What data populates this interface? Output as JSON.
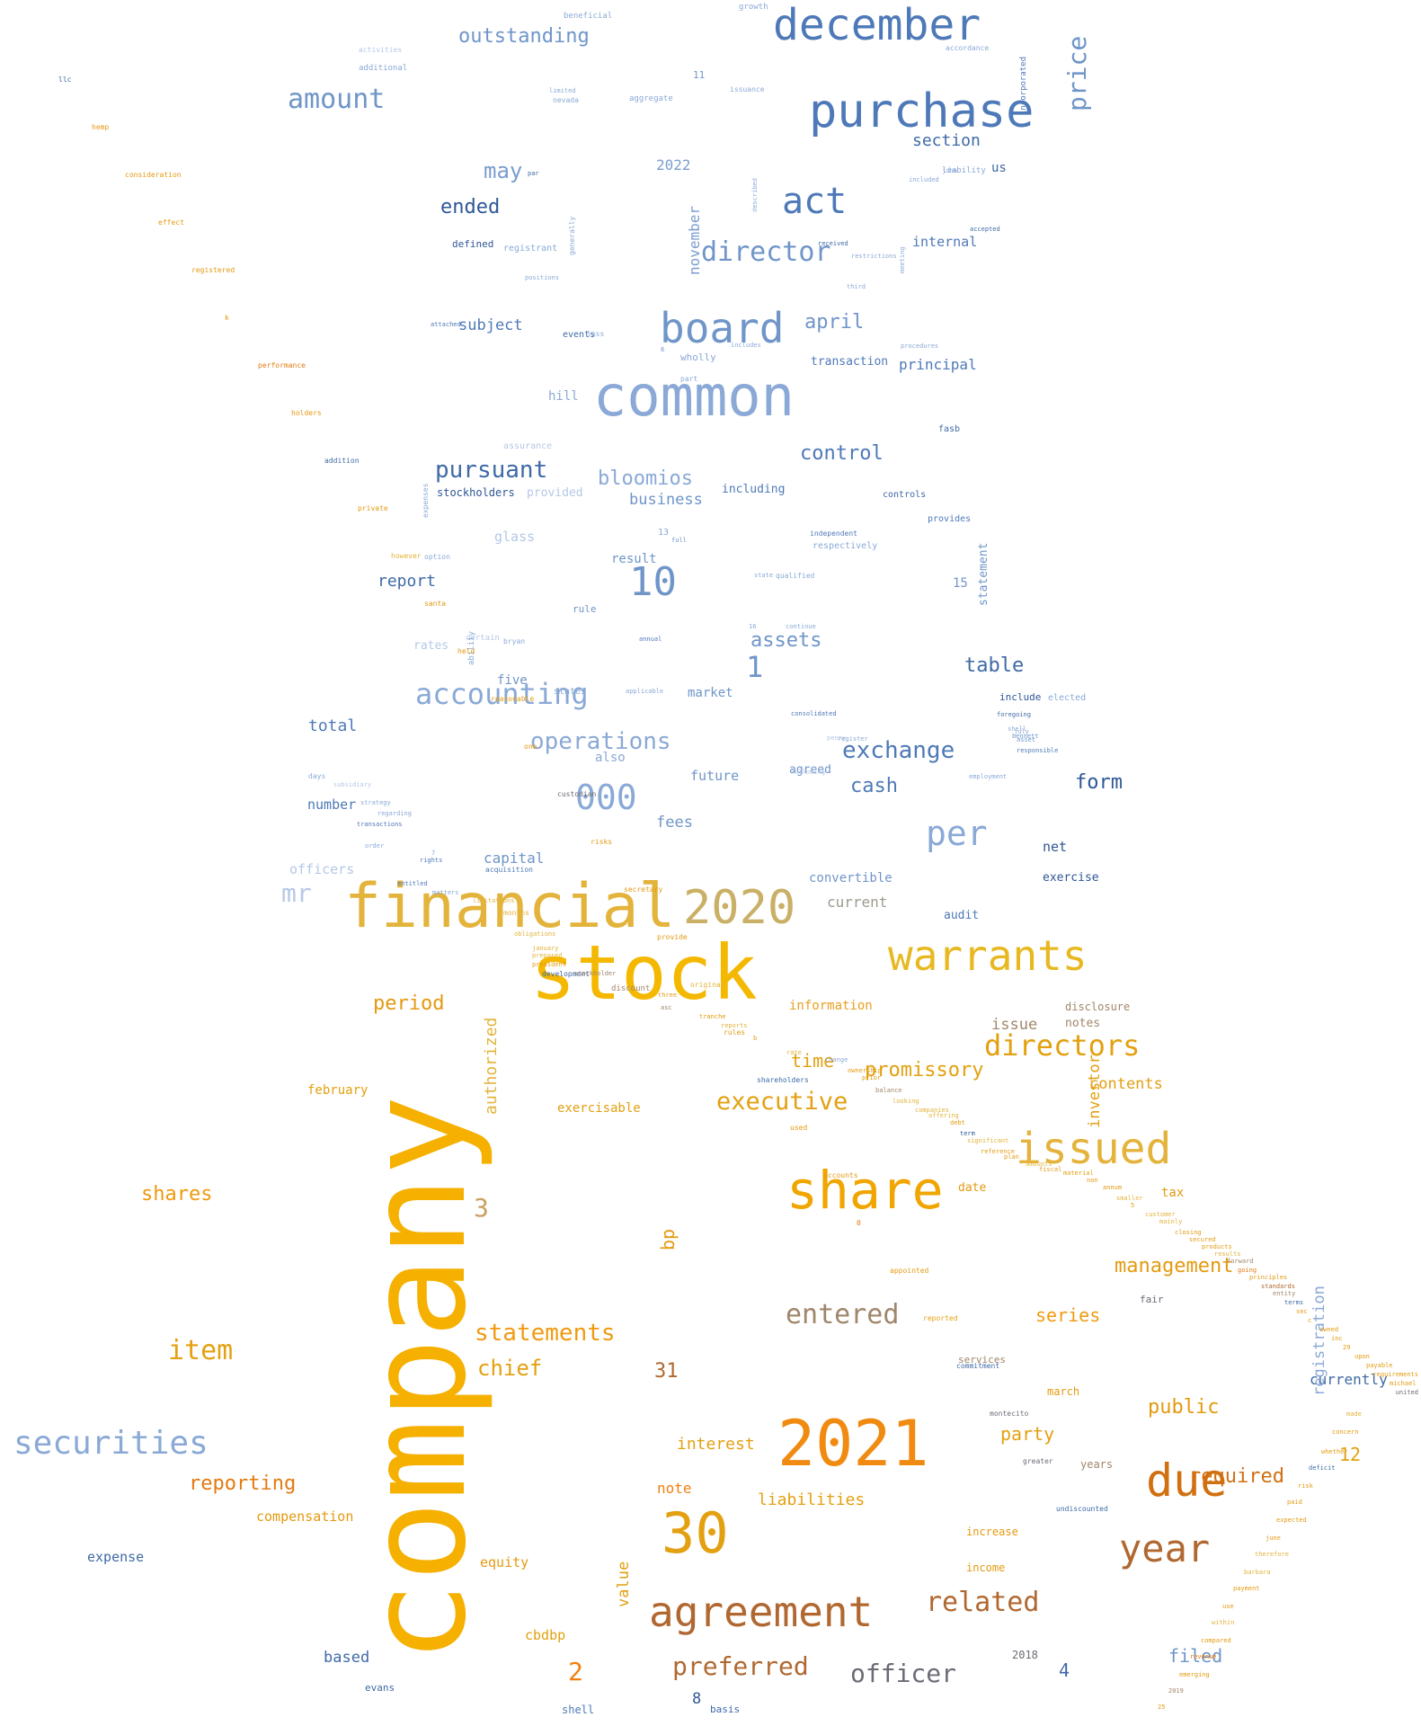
{
  "words": [
    {
      "t": "december",
      "c": "#4e79b8"
    },
    {
      "t": "purchase",
      "c": "#4e79b8"
    },
    {
      "t": "outstanding",
      "c": "#6f95c9"
    },
    {
      "t": "price",
      "c": "#6f95c9"
    },
    {
      "t": "amount",
      "c": "#6f95c9"
    },
    {
      "t": "section",
      "c": "#3f6aa6"
    },
    {
      "t": "may",
      "c": "#7a9dcf"
    },
    {
      "t": "2022",
      "c": "#7a9dcf"
    },
    {
      "t": "act",
      "c": "#4e79b8"
    },
    {
      "t": "us",
      "c": "#3f6aa6"
    },
    {
      "t": "ended",
      "c": "#2f5797"
    },
    {
      "t": "november",
      "c": "#7a9dcf"
    },
    {
      "t": "director",
      "c": "#6f95c9"
    },
    {
      "t": "internal",
      "c": "#4e79b8"
    },
    {
      "t": "defined",
      "c": "#2f5797"
    },
    {
      "t": "registrant",
      "c": "#8aa9d6"
    },
    {
      "t": "board",
      "c": "#6f95c9"
    },
    {
      "t": "april",
      "c": "#6f95c9"
    },
    {
      "t": "subject",
      "c": "#4e79b8"
    },
    {
      "t": "transaction",
      "c": "#4e79b8"
    },
    {
      "t": "principal",
      "c": "#4e79b8"
    },
    {
      "t": "common",
      "c": "#8aa9d6"
    },
    {
      "t": "hill",
      "c": "#8aa9d6"
    },
    {
      "t": "control",
      "c": "#4e79b8"
    },
    {
      "t": "pursuant",
      "c": "#3f6aa6"
    },
    {
      "t": "bloomios",
      "c": "#8aa9d6"
    },
    {
      "t": "including",
      "c": "#4e79b8"
    },
    {
      "t": "business",
      "c": "#6f95c9"
    },
    {
      "t": "stockholders",
      "c": "#2f5797"
    },
    {
      "t": "provided",
      "c": "#b5c8e6"
    },
    {
      "t": "glass",
      "c": "#b5c8e6"
    },
    {
      "t": "10",
      "c": "#6f95c9"
    },
    {
      "t": "result",
      "c": "#6f95c9"
    },
    {
      "t": "report",
      "c": "#3f6aa6"
    },
    {
      "t": "statement",
      "c": "#6f95c9"
    },
    {
      "t": "15",
      "c": "#6f95c9"
    },
    {
      "t": "rule",
      "c": "#6f95c9"
    },
    {
      "t": "assets",
      "c": "#6f95c9"
    },
    {
      "t": "rates",
      "c": "#b5c8e6"
    },
    {
      "t": "1",
      "c": "#6f95c9"
    },
    {
      "t": "table",
      "c": "#3f6aa6"
    },
    {
      "t": "accounting",
      "c": "#8aa9d6"
    },
    {
      "t": "five",
      "c": "#6f95c9"
    },
    {
      "t": "market",
      "c": "#6f95c9"
    },
    {
      "t": "include",
      "c": "#2f5797"
    },
    {
      "t": "total",
      "c": "#4e79b8"
    },
    {
      "t": "operations",
      "c": "#8aa9d6"
    },
    {
      "t": "also",
      "c": "#8aa9d6"
    },
    {
      "t": "exchange",
      "c": "#4e79b8"
    },
    {
      "t": "form",
      "c": "#2f5797"
    },
    {
      "t": "000",
      "c": "#8aa9d6"
    },
    {
      "t": "future",
      "c": "#6f95c9"
    },
    {
      "t": "cash",
      "c": "#4e79b8"
    },
    {
      "t": "agreed",
      "c": "#6f95c9"
    },
    {
      "t": "number",
      "c": "#4e79b8"
    },
    {
      "t": "fees",
      "c": "#6f95c9"
    },
    {
      "t": "per",
      "c": "#8aa9d6"
    },
    {
      "t": "net",
      "c": "#2f5797"
    },
    {
      "t": "officers",
      "c": "#b5c8e6"
    },
    {
      "t": "capital",
      "c": "#6f95c9"
    },
    {
      "t": "exercise",
      "c": "#2f5797"
    },
    {
      "t": "mr",
      "c": "#b5c8e6"
    },
    {
      "t": "convertible",
      "c": "#6f95c9"
    },
    {
      "t": "current",
      "c": "#9e9a8e"
    },
    {
      "t": "audit",
      "c": "#4e79b8"
    },
    {
      "t": "financial",
      "c": "#e3b33b"
    },
    {
      "t": "2020",
      "c": "#c9b066"
    },
    {
      "t": "stock",
      "c": "#f5b800"
    },
    {
      "t": "warrants",
      "c": "#e8b820"
    },
    {
      "t": "information",
      "c": "#e8a020"
    },
    {
      "t": "period",
      "c": "#e39a10"
    },
    {
      "t": "disclosure",
      "c": "#a0866a"
    },
    {
      "t": "issue",
      "c": "#a0866a"
    },
    {
      "t": "notes",
      "c": "#a0866a"
    },
    {
      "t": "directors",
      "c": "#e3a010"
    },
    {
      "t": "time",
      "c": "#e3a010"
    },
    {
      "t": "promissory",
      "c": "#e3a010"
    },
    {
      "t": "contents",
      "c": "#e3a010"
    },
    {
      "t": "authorized",
      "c": "#e3b33b"
    },
    {
      "t": "february",
      "c": "#e3a010"
    },
    {
      "t": "executive",
      "c": "#e3a010"
    },
    {
      "t": "investor",
      "c": "#e3a010"
    },
    {
      "t": "exercisable",
      "c": "#e3a010"
    },
    {
      "t": "issued",
      "c": "#e3b33b"
    },
    {
      "t": "company",
      "c": "#f5b000"
    },
    {
      "t": "share",
      "c": "#f0a500"
    },
    {
      "t": "shares",
      "c": "#f09a10"
    },
    {
      "t": "3",
      "c": "#c9a060"
    },
    {
      "t": "date",
      "c": "#e39a10"
    },
    {
      "t": "tax",
      "c": "#e39a10"
    },
    {
      "t": "bp",
      "c": "#e39a10"
    },
    {
      "t": "management",
      "c": "#e39a10"
    },
    {
      "t": "entered",
      "c": "#a0866a"
    },
    {
      "t": "statements",
      "c": "#f09a10"
    },
    {
      "t": "series",
      "c": "#f09a10"
    },
    {
      "t": "item",
      "c": "#e3a010"
    },
    {
      "t": "chief",
      "c": "#e3a010"
    },
    {
      "t": "31",
      "c": "#b06830"
    },
    {
      "t": "public",
      "c": "#e39a10"
    },
    {
      "t": "currently",
      "c": "#3f6aa6"
    },
    {
      "t": "securities",
      "c": "#8aa9d6"
    },
    {
      "t": "2021",
      "c": "#f08a10"
    },
    {
      "t": "party",
      "c": "#e3a010"
    },
    {
      "t": "interest",
      "c": "#e3a010"
    },
    {
      "t": "due",
      "c": "#d07010"
    },
    {
      "t": "12",
      "c": "#e3a010"
    },
    {
      "t": "required",
      "c": "#d07010"
    },
    {
      "t": "registration",
      "c": "#8aa9d6"
    },
    {
      "t": "reporting",
      "c": "#e37a10"
    },
    {
      "t": "note",
      "c": "#f08010"
    },
    {
      "t": "liabilities",
      "c": "#e3a010"
    },
    {
      "t": "30",
      "c": "#e3a010"
    },
    {
      "t": "year",
      "c": "#b06830"
    },
    {
      "t": "compensation",
      "c": "#e39a10"
    },
    {
      "t": "expense",
      "c": "#3f6aa6"
    },
    {
      "t": "agreement",
      "c": "#b06830"
    },
    {
      "t": "related",
      "c": "#b06830"
    },
    {
      "t": "value",
      "c": "#e3a010"
    },
    {
      "t": "equity",
      "c": "#e39a10"
    },
    {
      "t": "cbdbp",
      "c": "#e3a010"
    },
    {
      "t": "based",
      "c": "#3f6aa6"
    },
    {
      "t": "2",
      "c": "#f08010"
    },
    {
      "t": "preferred",
      "c": "#b06830"
    },
    {
      "t": "officer",
      "c": "#6d6a75"
    },
    {
      "t": "filed",
      "c": "#6f95c9"
    },
    {
      "t": "4",
      "c": "#3f6aa6"
    },
    {
      "t": "8",
      "c": "#2f5797"
    },
    {
      "t": "shell",
      "c": "#4e79b8"
    },
    {
      "t": "basis",
      "c": "#3f6aa6"
    },
    {
      "t": "evans",
      "c": "#3f6aa6"
    },
    {
      "t": "2018",
      "c": "#6d6a75"
    },
    {
      "t": "fair",
      "c": "#6d6a75"
    },
    {
      "t": "services",
      "c": "#a0866a"
    },
    {
      "t": "march",
      "c": "#e39a10"
    },
    {
      "t": "years",
      "c": "#a0866a"
    },
    {
      "t": "increase",
      "c": "#e39a10"
    },
    {
      "t": "income",
      "c": "#e39a10"
    },
    {
      "t": "beneficial",
      "c": "#8aa9d6"
    },
    {
      "t": "growth",
      "c": "#8aa9d6"
    },
    {
      "t": "activities",
      "c": "#b5c8e6"
    },
    {
      "t": "additional",
      "c": "#8aa9d6"
    },
    {
      "t": "nevada",
      "c": "#8aa9d6"
    },
    {
      "t": "aggregate",
      "c": "#8aa9d6"
    },
    {
      "t": "accordance",
      "c": "#8aa9d6"
    },
    {
      "t": "incorporated",
      "c": "#4e79b8"
    },
    {
      "t": "11",
      "c": "#6f95c9"
    },
    {
      "t": "issuance",
      "c": "#8aa9d6"
    },
    {
      "t": "limited",
      "c": "#8aa9d6"
    },
    {
      "t": "john",
      "c": "#8aa9d6"
    },
    {
      "t": "liability",
      "c": "#8aa9d6"
    },
    {
      "t": "par",
      "c": "#3f6aa6"
    },
    {
      "t": "generally",
      "c": "#8aa9d6"
    },
    {
      "t": "described",
      "c": "#8aa9d6"
    },
    {
      "t": "included",
      "c": "#8aa9d6"
    },
    {
      "t": "accepted",
      "c": "#3f6aa6"
    },
    {
      "t": "received",
      "c": "#3f6aa6"
    },
    {
      "t": "restrictions",
      "c": "#8aa9d6"
    },
    {
      "t": "meeting",
      "c": "#8aa9d6"
    },
    {
      "t": "positions",
      "c": "#8aa9d6"
    },
    {
      "t": "third",
      "c": "#8aa9d6"
    },
    {
      "t": "attached",
      "c": "#4e79b8"
    },
    {
      "t": "events",
      "c": "#3f6aa6"
    },
    {
      "t": "loss",
      "c": "#8aa9d6"
    },
    {
      "t": "wholly",
      "c": "#8aa9d6"
    },
    {
      "t": "6",
      "c": "#6f95c9"
    },
    {
      "t": "part",
      "c": "#8aa9d6"
    },
    {
      "t": "includes",
      "c": "#8aa9d6"
    },
    {
      "t": "procedures",
      "c": "#8aa9d6"
    },
    {
      "t": "fasb",
      "c": "#3f6aa6"
    },
    {
      "t": "assurance",
      "c": "#b5c8e6"
    },
    {
      "t": "expenses",
      "c": "#8aa9d6"
    },
    {
      "t": "controls",
      "c": "#3f6aa6"
    },
    {
      "t": "provides",
      "c": "#4e79b8"
    },
    {
      "t": "13",
      "c": "#8aa9d6"
    },
    {
      "t": "full",
      "c": "#6f95c9"
    },
    {
      "t": "independent",
      "c": "#4e79b8"
    },
    {
      "t": "respectively",
      "c": "#8aa9d6"
    },
    {
      "t": "option",
      "c": "#8aa9d6"
    },
    {
      "t": "state",
      "c": "#8aa9d6"
    },
    {
      "t": "qualified",
      "c": "#8aa9d6"
    },
    {
      "t": "16",
      "c": "#8aa9d6"
    },
    {
      "t": "continue",
      "c": "#8aa9d6"
    },
    {
      "t": "certain",
      "c": "#b5c8e6"
    },
    {
      "t": "bryan",
      "c": "#8aa9d6"
    },
    {
      "t": "annual",
      "c": "#4e79b8"
    },
    {
      "t": "ability",
      "c": "#8aa9d6"
    },
    {
      "t": "states",
      "c": "#8aa9d6"
    },
    {
      "t": "applicable",
      "c": "#8aa9d6"
    },
    {
      "t": "elected",
      "c": "#8aa9d6"
    },
    {
      "t": "consolidated",
      "c": "#4e79b8"
    },
    {
      "t": "shell",
      "c": "#8aa9d6"
    },
    {
      "t": "responsible",
      "c": "#4e79b8"
    },
    {
      "t": "foregoing",
      "c": "#3f6aa6"
    },
    {
      "t": "employment",
      "c": "#8aa9d6"
    },
    {
      "t": "following",
      "c": "#b5c8e6"
    },
    {
      "t": "penny",
      "c": "#b5c8e6"
    },
    {
      "t": "july",
      "c": "#8aa9d6"
    },
    {
      "t": "bennett",
      "c": "#6f95c9"
    },
    {
      "t": "asset",
      "c": "#6f95c9"
    },
    {
      "t": "register",
      "c": "#8aa9d6"
    },
    {
      "t": "days",
      "c": "#8aa9d6"
    },
    {
      "t": "subsidiary",
      "c": "#b5c8e6"
    },
    {
      "t": "strategy",
      "c": "#8aa9d6"
    },
    {
      "t": "regarding",
      "c": "#8aa9d6"
    },
    {
      "t": "transactions",
      "c": "#4e79b8"
    },
    {
      "t": "order",
      "c": "#8aa9d6"
    },
    {
      "t": "7",
      "c": "#8aa9d6"
    },
    {
      "t": "rights",
      "c": "#4e79b8"
    },
    {
      "t": "acquisition",
      "c": "#4e79b8"
    },
    {
      "t": "entitled",
      "c": "#4e79b8"
    },
    {
      "t": "matters",
      "c": "#8aa9d6"
    },
    {
      "t": "limitations",
      "c": "#e3b33b"
    },
    {
      "t": "months",
      "c": "#e3b33b"
    },
    {
      "t": "obligations",
      "c": "#e3b33b"
    },
    {
      "t": "january",
      "c": "#e3b33b"
    },
    {
      "t": "prepared",
      "c": "#e3b33b"
    },
    {
      "t": "president",
      "c": "#e39a10"
    },
    {
      "t": "development",
      "c": "#3f6aa6"
    },
    {
      "t": "stockholder",
      "c": "#a0866a"
    },
    {
      "t": "discount",
      "c": "#a0866a"
    },
    {
      "t": "three",
      "c": "#e39a10"
    },
    {
      "t": "asc",
      "c": "#a0866a"
    },
    {
      "t": "tranche",
      "c": "#e39a10"
    },
    {
      "t": "reports",
      "c": "#e3b33b"
    },
    {
      "t": "b",
      "c": "#e39a10"
    },
    {
      "t": "rate",
      "c": "#e3b33b"
    },
    {
      "t": "change",
      "c": "#8aa9d6"
    },
    {
      "t": "ownership",
      "c": "#e39a10"
    },
    {
      "t": "prior",
      "c": "#e39a10"
    },
    {
      "t": "balance",
      "c": "#a0866a"
    },
    {
      "t": "looking",
      "c": "#e3b33b"
    },
    {
      "t": "companies",
      "c": "#e3b33b"
    },
    {
      "t": "offering",
      "c": "#e3b33b"
    },
    {
      "t": "debt",
      "c": "#e39a10"
    },
    {
      "t": "term",
      "c": "#2f5797"
    },
    {
      "t": "significant",
      "c": "#e3b33b"
    },
    {
      "t": "reference",
      "c": "#e39a10"
    },
    {
      "t": "plan",
      "c": "#e39a10"
    },
    {
      "t": "amounts",
      "c": "#e3b33b"
    },
    {
      "t": "fiscal",
      "c": "#e39a10"
    },
    {
      "t": "material",
      "c": "#e3a010"
    },
    {
      "t": "non",
      "c": "#e39a10"
    },
    {
      "t": "annum",
      "c": "#e39a10"
    },
    {
      "t": "smaller",
      "c": "#e3b33b"
    },
    {
      "t": "5",
      "c": "#e3a010"
    },
    {
      "t": "customer",
      "c": "#e3b33b"
    },
    {
      "t": "mainly",
      "c": "#e3b33b"
    },
    {
      "t": "closing",
      "c": "#e39a10"
    },
    {
      "t": "secured",
      "c": "#e39a10"
    },
    {
      "t": "products",
      "c": "#e39a10"
    },
    {
      "t": "results",
      "c": "#e3b33b"
    },
    {
      "t": "forward",
      "c": "#a0866a"
    },
    {
      "t": "going",
      "c": "#e37a10"
    },
    {
      "t": "principles",
      "c": "#e39a10"
    },
    {
      "t": "standards",
      "c": "#b06830"
    },
    {
      "t": "entity",
      "c": "#a0866a"
    },
    {
      "t": "terms",
      "c": "#3f6aa6"
    },
    {
      "t": "sec",
      "c": "#e39a10"
    },
    {
      "t": "c",
      "c": "#e39a10"
    },
    {
      "t": "owned",
      "c": "#e39a10"
    },
    {
      "t": "inc",
      "c": "#e39a10"
    },
    {
      "t": "29",
      "c": "#e39a10"
    },
    {
      "t": "upon",
      "c": "#e39a10"
    },
    {
      "t": "payable",
      "c": "#e39a10"
    },
    {
      "t": "requirements",
      "c": "#e39a10"
    },
    {
      "t": "michael",
      "c": "#e39a10"
    },
    {
      "t": "united",
      "c": "#6d6a75"
    },
    {
      "t": "made",
      "c": "#e3b33b"
    },
    {
      "t": "concern",
      "c": "#e39a10"
    },
    {
      "t": "whether",
      "c": "#e39a10"
    },
    {
      "t": "deficit",
      "c": "#3f6aa6"
    },
    {
      "t": "risk",
      "c": "#e39a10"
    },
    {
      "t": "paid",
      "c": "#e39a10"
    },
    {
      "t": "expected",
      "c": "#e39a10"
    },
    {
      "t": "june",
      "c": "#e39a10"
    },
    {
      "t": "therefore",
      "c": "#e3b33b"
    },
    {
      "t": "barbara",
      "c": "#e3b33b"
    },
    {
      "t": "payment",
      "c": "#e39a10"
    },
    {
      "t": "use",
      "c": "#e39a10"
    },
    {
      "t": "within",
      "c": "#e3b33b"
    },
    {
      "t": "compared",
      "c": "#e39a10"
    },
    {
      "t": "revenue",
      "c": "#e37a10"
    },
    {
      "t": "emerging",
      "c": "#e39a10"
    },
    {
      "t": "2019",
      "c": "#a0866a"
    },
    {
      "t": "25",
      "c": "#e39a10"
    },
    {
      "t": "llc",
      "c": "#3f6aa6"
    },
    {
      "t": "hemp",
      "c": "#e39a10"
    },
    {
      "t": "consideration",
      "c": "#e39a10"
    },
    {
      "t": "effect",
      "c": "#e39a10"
    },
    {
      "t": "registered",
      "c": "#e39a10"
    },
    {
      "t": "k",
      "c": "#e39a10"
    },
    {
      "t": "performance",
      "c": "#e37a10"
    },
    {
      "t": "holders",
      "c": "#e39a10"
    },
    {
      "t": "addition",
      "c": "#3f6aa6"
    },
    {
      "t": "private",
      "c": "#e39a10"
    },
    {
      "t": "however",
      "c": "#e3b33b"
    },
    {
      "t": "santa",
      "c": "#e39a10"
    },
    {
      "t": "held",
      "c": "#e39a10"
    },
    {
      "t": "reasonable",
      "c": "#e39a10"
    },
    {
      "t": "one",
      "c": "#e39a10"
    },
    {
      "t": "custodian",
      "c": "#6d6a75"
    },
    {
      "t": "risks",
      "c": "#e39a10"
    },
    {
      "t": "secretary",
      "c": "#e39a10"
    },
    {
      "t": "provide",
      "c": "#e39a10"
    },
    {
      "t": "original",
      "c": "#e3b33b"
    },
    {
      "t": "rules",
      "c": "#e39a10"
    },
    {
      "t": "shareholders",
      "c": "#3f6aa6"
    },
    {
      "t": "used",
      "c": "#e39a10"
    },
    {
      "t": "accounts",
      "c": "#e39a10"
    },
    {
      "t": "0",
      "c": "#e37a10"
    },
    {
      "t": "appointed",
      "c": "#e39a10"
    },
    {
      "t": "reported",
      "c": "#e3a010"
    },
    {
      "t": "commitment",
      "c": "#3f6aa6"
    },
    {
      "t": "montecito",
      "c": "#6d6a75"
    },
    {
      "t": "greater",
      "c": "#6d6a75"
    },
    {
      "t": "undiscounted",
      "c": "#3f6aa6"
    }
  ]
}
